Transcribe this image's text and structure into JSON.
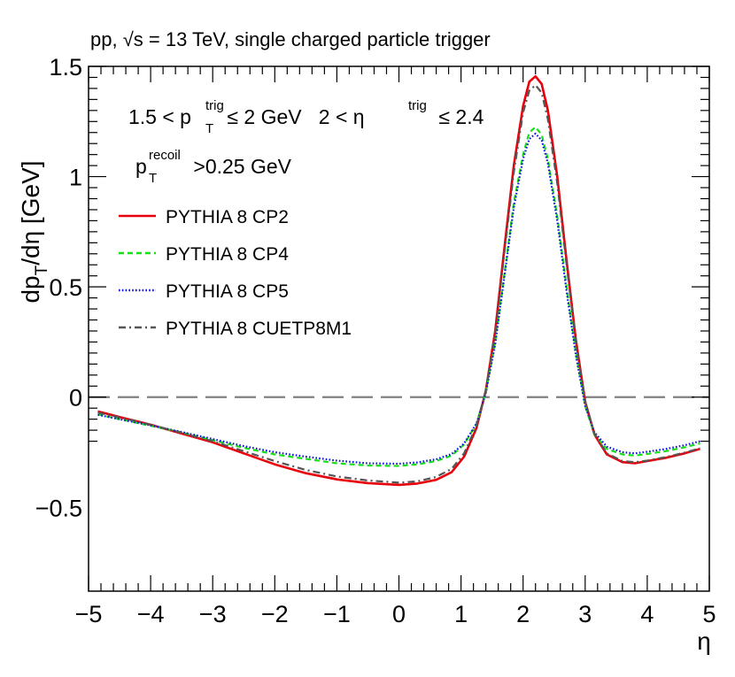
{
  "chart_data": {
    "type": "line",
    "title": "pp, √s = 13 TeV,  single charged particle trigger",
    "xlabel": "η",
    "ylabel": "dp_T/dη [GeV]",
    "ylabel_parts": {
      "a": "dp",
      "sub": "T",
      "b": "/dη [GeV]"
    },
    "xlim": [
      -5,
      5
    ],
    "ylim": [
      -0.88,
      1.5
    ],
    "x_ticks": [
      {
        "v": -5,
        "label": "−5"
      },
      {
        "v": -4,
        "label": "−4"
      },
      {
        "v": -3,
        "label": "−3"
      },
      {
        "v": -2,
        "label": "−2"
      },
      {
        "v": -1,
        "label": "−1"
      },
      {
        "v": 0,
        "label": "0"
      },
      {
        "v": 1,
        "label": "1"
      },
      {
        "v": 2,
        "label": "2"
      },
      {
        "v": 3,
        "label": "3"
      },
      {
        "v": 4,
        "label": "4"
      },
      {
        "v": 5,
        "label": "5"
      }
    ],
    "y_ticks": [
      {
        "v": -0.5,
        "label": "−0.5"
      },
      {
        "v": 0,
        "label": "0"
      },
      {
        "v": 0.5,
        "label": "0.5"
      },
      {
        "v": 1,
        "label": "1"
      },
      {
        "v": 1.5,
        "label": "1.5"
      }
    ],
    "zero_line": 0,
    "annotations": {
      "line1": {
        "lead": "1.5 < p",
        "sup": "trig",
        "sub": "T",
        "tail": " ≤ 2 GeV   2 < η",
        "sup2": "trig",
        "tail2": " ≤ 2.4"
      },
      "line2": {
        "lead": "p",
        "sup": "recoil",
        "sub": "T",
        "tail": " >0.25 GeV"
      }
    },
    "legend_position": "top-left",
    "series": [
      {
        "name": "PYTHIA 8 CP2",
        "color": "#e8000b",
        "dash": "solid",
        "points": [
          [
            -4.85,
            -0.065
          ],
          [
            -4.5,
            -0.09
          ],
          [
            -4,
            -0.125
          ],
          [
            -3.5,
            -0.165
          ],
          [
            -3,
            -0.205
          ],
          [
            -2.5,
            -0.255
          ],
          [
            -2,
            -0.305
          ],
          [
            -1.5,
            -0.345
          ],
          [
            -1,
            -0.373
          ],
          [
            -0.5,
            -0.39
          ],
          [
            0,
            -0.398
          ],
          [
            0.3,
            -0.392
          ],
          [
            0.6,
            -0.375
          ],
          [
            0.85,
            -0.34
          ],
          [
            1.05,
            -0.27
          ],
          [
            1.25,
            -0.14
          ],
          [
            1.4,
            0.03
          ],
          [
            1.55,
            0.3
          ],
          [
            1.7,
            0.68
          ],
          [
            1.85,
            1.05
          ],
          [
            2,
            1.32
          ],
          [
            2.1,
            1.43
          ],
          [
            2.2,
            1.455
          ],
          [
            2.3,
            1.42
          ],
          [
            2.4,
            1.3
          ],
          [
            2.55,
            1.0
          ],
          [
            2.7,
            0.62
          ],
          [
            2.85,
            0.26
          ],
          [
            3,
            -0.02
          ],
          [
            3.15,
            -0.17
          ],
          [
            3.35,
            -0.26
          ],
          [
            3.6,
            -0.295
          ],
          [
            3.8,
            -0.3
          ],
          [
            4,
            -0.29
          ],
          [
            4.3,
            -0.275
          ],
          [
            4.6,
            -0.255
          ],
          [
            4.85,
            -0.235
          ]
        ]
      },
      {
        "name": "PYTHIA 8 CP4",
        "color": "#18e018",
        "dash": "dashed",
        "points": [
          [
            -4.85,
            -0.078
          ],
          [
            -4.5,
            -0.1
          ],
          [
            -4,
            -0.13
          ],
          [
            -3.5,
            -0.16
          ],
          [
            -3,
            -0.195
          ],
          [
            -2.5,
            -0.23
          ],
          [
            -2,
            -0.26
          ],
          [
            -1.5,
            -0.28
          ],
          [
            -1,
            -0.3
          ],
          [
            -0.5,
            -0.31
          ],
          [
            0,
            -0.312
          ],
          [
            0.3,
            -0.305
          ],
          [
            0.6,
            -0.29
          ],
          [
            0.85,
            -0.265
          ],
          [
            1.05,
            -0.215
          ],
          [
            1.25,
            -0.12
          ],
          [
            1.4,
            0.02
          ],
          [
            1.55,
            0.25
          ],
          [
            1.7,
            0.56
          ],
          [
            1.85,
            0.88
          ],
          [
            2,
            1.1
          ],
          [
            2.1,
            1.2
          ],
          [
            2.2,
            1.225
          ],
          [
            2.3,
            1.19
          ],
          [
            2.4,
            1.08
          ],
          [
            2.55,
            0.82
          ],
          [
            2.7,
            0.5
          ],
          [
            2.85,
            0.2
          ],
          [
            3,
            -0.04
          ],
          [
            3.15,
            -0.17
          ],
          [
            3.35,
            -0.235
          ],
          [
            3.6,
            -0.26
          ],
          [
            3.8,
            -0.265
          ],
          [
            4,
            -0.258
          ],
          [
            4.3,
            -0.245
          ],
          [
            4.6,
            -0.228
          ],
          [
            4.85,
            -0.21
          ]
        ]
      },
      {
        "name": "PYTHIA 8 CP5",
        "color": "#0a14d8",
        "dash": "dotted",
        "points": [
          [
            -4.85,
            -0.08
          ],
          [
            -4.5,
            -0.1
          ],
          [
            -4,
            -0.128
          ],
          [
            -3.5,
            -0.158
          ],
          [
            -3,
            -0.19
          ],
          [
            -2.5,
            -0.222
          ],
          [
            -2,
            -0.25
          ],
          [
            -1.5,
            -0.27
          ],
          [
            -1,
            -0.288
          ],
          [
            -0.5,
            -0.3
          ],
          [
            0,
            -0.302
          ],
          [
            0.3,
            -0.296
          ],
          [
            0.6,
            -0.282
          ],
          [
            0.85,
            -0.258
          ],
          [
            1.05,
            -0.21
          ],
          [
            1.25,
            -0.12
          ],
          [
            1.4,
            0.02
          ],
          [
            1.55,
            0.24
          ],
          [
            1.7,
            0.55
          ],
          [
            1.85,
            0.86
          ],
          [
            2,
            1.08
          ],
          [
            2.1,
            1.17
          ],
          [
            2.2,
            1.195
          ],
          [
            2.3,
            1.165
          ],
          [
            2.4,
            1.06
          ],
          [
            2.55,
            0.8
          ],
          [
            2.7,
            0.48
          ],
          [
            2.85,
            0.19
          ],
          [
            3,
            -0.04
          ],
          [
            3.15,
            -0.16
          ],
          [
            3.35,
            -0.225
          ],
          [
            3.6,
            -0.25
          ],
          [
            3.8,
            -0.255
          ],
          [
            4,
            -0.248
          ],
          [
            4.3,
            -0.235
          ],
          [
            4.6,
            -0.218
          ],
          [
            4.85,
            -0.2
          ]
        ]
      },
      {
        "name": "PYTHIA 8 CUETP8M1",
        "color": "#555555",
        "dash": "dashdot",
        "points": [
          [
            -4.85,
            -0.07
          ],
          [
            -4.5,
            -0.092
          ],
          [
            -4,
            -0.125
          ],
          [
            -3.5,
            -0.162
          ],
          [
            -3,
            -0.2
          ],
          [
            -2.5,
            -0.245
          ],
          [
            -2,
            -0.29
          ],
          [
            -1.5,
            -0.33
          ],
          [
            -1,
            -0.36
          ],
          [
            -0.5,
            -0.378
          ],
          [
            0,
            -0.388
          ],
          [
            0.3,
            -0.382
          ],
          [
            0.6,
            -0.362
          ],
          [
            0.85,
            -0.325
          ],
          [
            1.05,
            -0.255
          ],
          [
            1.25,
            -0.13
          ],
          [
            1.4,
            0.03
          ],
          [
            1.55,
            0.29
          ],
          [
            1.7,
            0.66
          ],
          [
            1.85,
            1.02
          ],
          [
            2,
            1.29
          ],
          [
            2.1,
            1.39
          ],
          [
            2.2,
            1.415
          ],
          [
            2.3,
            1.38
          ],
          [
            2.4,
            1.26
          ],
          [
            2.55,
            0.97
          ],
          [
            2.7,
            0.6
          ],
          [
            2.85,
            0.25
          ],
          [
            3,
            -0.02
          ],
          [
            3.15,
            -0.165
          ],
          [
            3.35,
            -0.255
          ],
          [
            3.6,
            -0.29
          ],
          [
            3.8,
            -0.295
          ],
          [
            4,
            -0.288
          ],
          [
            4.3,
            -0.272
          ],
          [
            4.6,
            -0.252
          ],
          [
            4.85,
            -0.232
          ]
        ]
      }
    ]
  }
}
